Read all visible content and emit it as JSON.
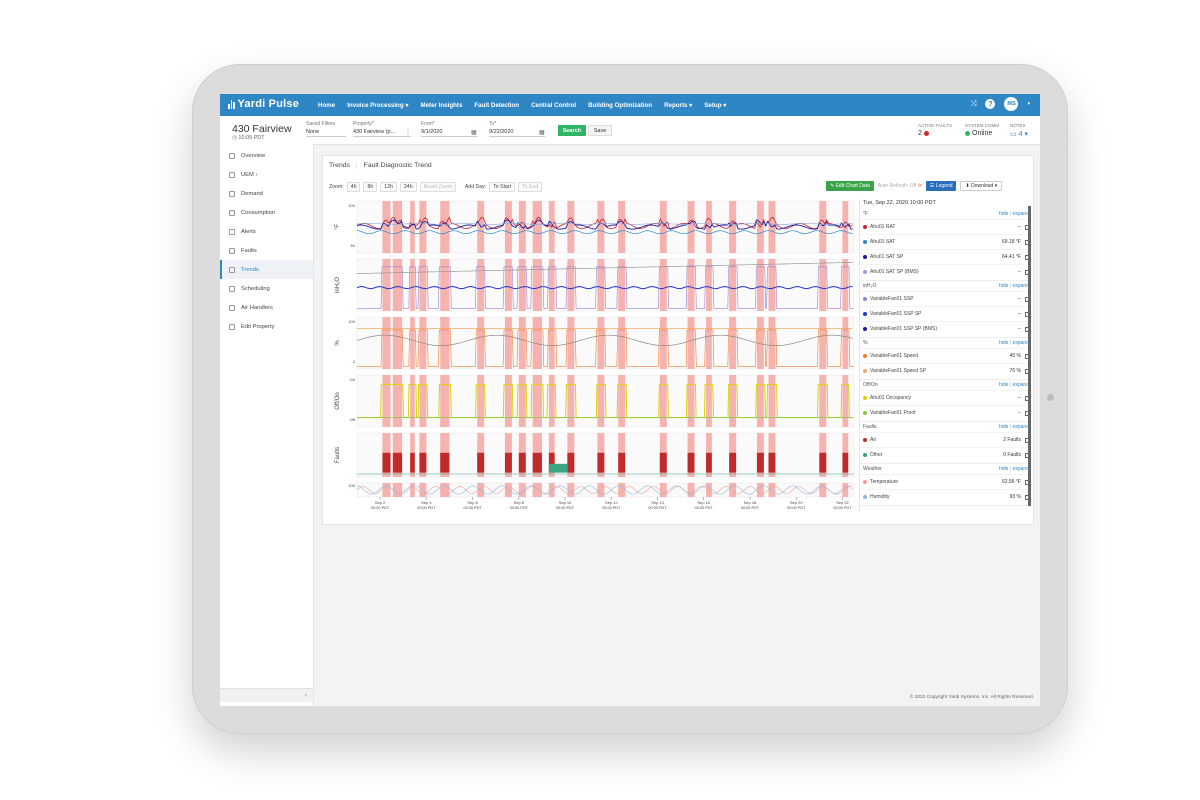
{
  "app": {
    "brand": "Yardi Pulse"
  },
  "nav": {
    "items": [
      "Home",
      "Invoice Processing ▾",
      "Meter Insights",
      "Fault Detection",
      "Central Control",
      "Building Optimization",
      "Reports ▾",
      "Setup ▾"
    ]
  },
  "user": {
    "initials": "MS"
  },
  "property": {
    "name": "430 Fairview",
    "time": "10:09 PDT"
  },
  "filters": {
    "saved_label": "Saved Filters",
    "saved_value": "None",
    "property_label": "Property",
    "property_value": "430 Fairview (p...",
    "from_label": "From",
    "from_value": "9/1/2020",
    "to_label": "To",
    "to_value": "9/22/2020",
    "search_label": "Search",
    "save_label": "Save"
  },
  "status": {
    "faults_label": "ACTIVE FAULTS",
    "faults_value": "2",
    "comm_label": "SYSTEM COMM",
    "comm_value": "Online",
    "notes_label": "NOTES",
    "notes_value": "4 ▾"
  },
  "sidebar": {
    "items": [
      "Overview",
      "UEM ›",
      "Demand",
      "Consumption",
      "Alerts",
      "Faults",
      "Trends",
      "Scheduling",
      "Air Handlers",
      "Edit Property"
    ],
    "active": "Trends",
    "collapse": "‹"
  },
  "card": {
    "tab1": "Trends",
    "tab2": "Fault Diagnostic Trend",
    "zoom_label": "Zoom:",
    "zoom_options": [
      "4h",
      "8h",
      "12h",
      "24h"
    ],
    "reset_zoom": "Reset Zoom",
    "add_day_label": "Add Day:",
    "to_start": "To Start",
    "to_end": "To End",
    "edit_chart_data": "Edit Chart Data",
    "auto_refresh": "Auto Refresh: Off",
    "legend": "Legend",
    "download": "Download ▾"
  },
  "chart_data": {
    "type": "line",
    "panels": [
      {
        "ylabel": "°F",
        "ticks": [
          "100",
          "50"
        ]
      },
      {
        "ylabel": "inH₂O",
        "ticks": []
      },
      {
        "ylabel": "%",
        "ticks": [
          "100",
          "0"
        ]
      },
      {
        "ylabel": "Off/On",
        "ticks": [
          "On",
          "Off"
        ]
      },
      {
        "ylabel": "Faults",
        "ticks": []
      },
      {
        "ylabel": "",
        "ticks": [
          "100"
        ]
      }
    ],
    "x_ticks": [
      "Sep 2",
      "Sep 4",
      "Sep 6",
      "Sep 8",
      "Sep 10",
      "Sep 12",
      "Sep 14",
      "Sep 16",
      "Sep 18",
      "Sep 20",
      "Sep 22"
    ],
    "x_subticks": "00:00 PDT",
    "fault_bands_days": [
      [
        1.1,
        1.45
      ],
      [
        1.55,
        1.95
      ],
      [
        2.3,
        2.5
      ],
      [
        2.7,
        3.0
      ],
      [
        3.6,
        4.0
      ],
      [
        5.2,
        5.5
      ],
      [
        6.4,
        6.7
      ],
      [
        7.0,
        7.3
      ],
      [
        7.6,
        8.0
      ],
      [
        8.3,
        8.55
      ],
      [
        9.1,
        9.4
      ],
      [
        10.4,
        10.7
      ],
      [
        11.3,
        11.6
      ],
      [
        13.1,
        13.4
      ],
      [
        14.3,
        14.6
      ],
      [
        15.1,
        15.35
      ],
      [
        16.1,
        16.4
      ],
      [
        17.3,
        17.6
      ],
      [
        17.8,
        18.1
      ],
      [
        20.0,
        20.3
      ],
      [
        21.0,
        21.25
      ]
    ],
    "colors": {
      "band": "#f4a4a0",
      "rat": "#c1272d",
      "sat": "#2f86c5",
      "satsp": "#1a1aa0",
      "satsp_bms": "#8fa7d8",
      "ssp": "#9b7fd4",
      "sspsp": "#2233cc",
      "speed": "#f07b2c",
      "speedsp": "#f2a860",
      "occ": "#d6d600",
      "proof": "#88c840",
      "fault_air": "#c12a2a",
      "fault_other": "#3aa485",
      "temp": "#f0a0a0",
      "humidity": "#90b8e0"
    }
  },
  "legend": {
    "date": "Tue, Sep 22, 2020 10:00 PDT",
    "groups": [
      {
        "unit": "°F",
        "rows": [
          {
            "name": "Ahu01 RAT",
            "value": "--",
            "color": "#c1272d"
          },
          {
            "name": "Ahu01 SAT",
            "value": "69.18 °F",
            "color": "#2f86c5"
          },
          {
            "name": "Ahu01 SAT SP",
            "value": "64.41 °F",
            "color": "#1a1aa0"
          },
          {
            "name": "Ahu01 SAT SP (BMS)",
            "value": "--",
            "color": "#8fa7d8"
          }
        ]
      },
      {
        "unit": "inH₂O",
        "rows": [
          {
            "name": "VariableFan01 SSP",
            "value": "--",
            "color": "#9b7fd4"
          },
          {
            "name": "VariableFan01 SSP SP",
            "value": "--",
            "color": "#2233cc"
          },
          {
            "name": "VariableFan01 SSP SP (BMS)",
            "value": "--",
            "color": "#1a1aa0"
          }
        ]
      },
      {
        "unit": "%",
        "rows": [
          {
            "name": "VariableFan01 Speed",
            "value": "45 %",
            "color": "#f07b2c"
          },
          {
            "name": "VariableFan01 Speed SP",
            "value": "70 %",
            "color": "#f2a860"
          }
        ]
      },
      {
        "unit": "Off/On",
        "rows": [
          {
            "name": "Ahu01 Occupancy",
            "value": "--",
            "color": "#d6d600"
          },
          {
            "name": "VariableFan01 Proof",
            "value": "--",
            "color": "#88c840"
          }
        ]
      },
      {
        "unit": "Faults",
        "rows": [
          {
            "name": "Air",
            "value": "2 Faults",
            "color": "#c12a2a"
          },
          {
            "name": "Other",
            "value": "0 Faults",
            "color": "#3aa485"
          }
        ]
      },
      {
        "unit": "Weather",
        "rows": [
          {
            "name": "Temperature",
            "value": "62.56 °F",
            "color": "#f0a0a0"
          },
          {
            "name": "Humidity",
            "value": "93 %",
            "color": "#90b8e0"
          }
        ]
      }
    ],
    "hide": "hide",
    "expand": "expand",
    "sep": "|"
  },
  "footer": {
    "copyright": "© 2020 Copyright Yardi Systems, Inc. All Rights Reserved."
  }
}
